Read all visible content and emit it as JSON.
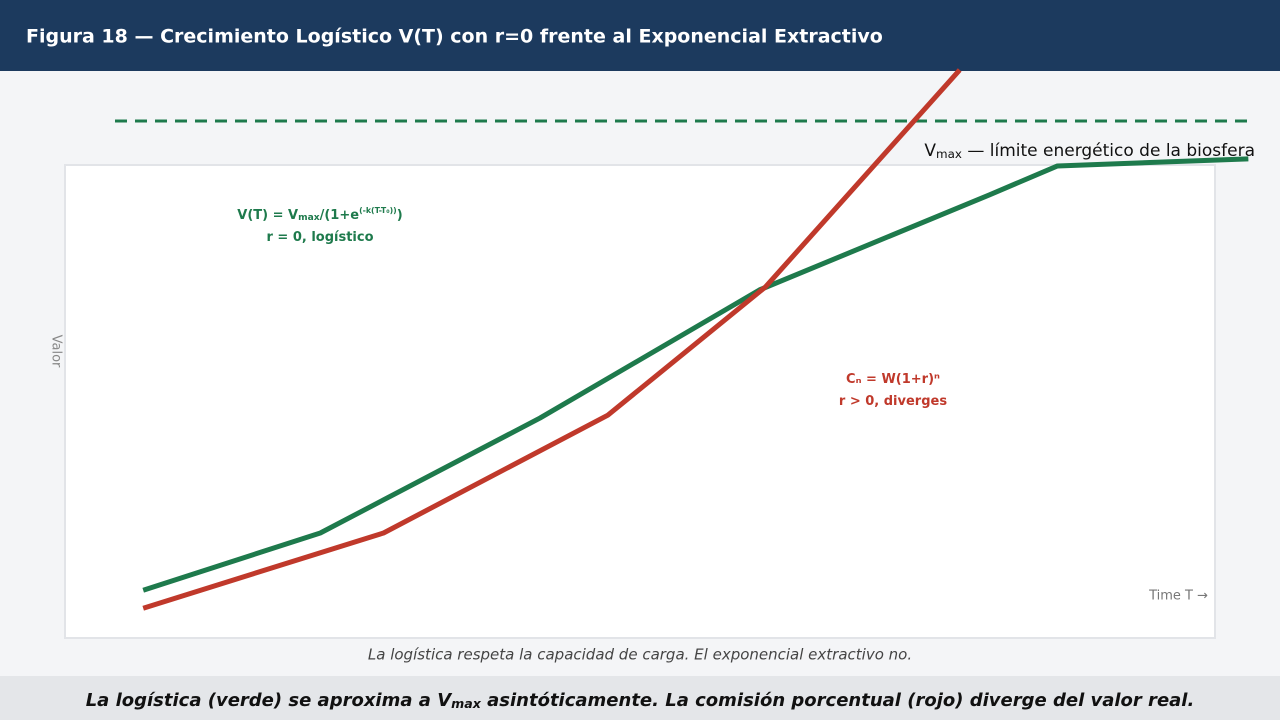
{
  "header": {
    "title": "Figura 18  — Crecimiento Logístico V(T) con r=0 frente al Exponencial Extractivo"
  },
  "chart_data": {
    "type": "line",
    "xlabel": "Time T →",
    "ylabel": "Valor",
    "xlim": [
      0,
      100
    ],
    "ylim": [
      0,
      100
    ],
    "series": [
      {
        "color": "#1e7a4c",
        "x": [
          6.8,
          22.2,
          41.3,
          60.4,
          80.4,
          86.3,
          102.9
        ],
        "values": [
          10.1,
          22.2,
          46.5,
          73.6,
          93.7,
          99.8,
          101.3
        ]
      },
      {
        "color": "#c0392b",
        "x": [
          6.8,
          27.7,
          47.2,
          60.9,
          77.8
        ],
        "values": [
          6.3,
          22.2,
          47.1,
          74.2,
          120.1
        ]
      }
    ],
    "threshold": {
      "value": 109.3,
      "color": "#1e7a4c",
      "label_parts": [
        {
          "text": "V",
          "style": "base"
        },
        {
          "text": "max",
          "style": "sub"
        },
        {
          "text": " — límite energético de la biosfera",
          "style": "base"
        }
      ]
    },
    "annotations": [
      {
        "color": "#1e7a4c",
        "lines": [
          [
            {
              "text": "V(T) = V",
              "style": "base"
            },
            {
              "text": "max",
              "style": "sub"
            },
            {
              "text": "/(1+e",
              "style": "base"
            },
            {
              "text": "(-k(T-T₀))",
              "style": "sup"
            },
            {
              "text": ")",
              "style": "base"
            }
          ],
          [
            {
              "text": "r = 0, logístico",
              "style": "base"
            }
          ]
        ]
      },
      {
        "color": "#c0392b",
        "lines": [
          [
            {
              "text": "Cₙ = W(1+r)ⁿ",
              "style": "base"
            }
          ],
          [
            {
              "text": "r > 0, diverges",
              "style": "base"
            }
          ]
        ]
      }
    ],
    "caption": "La logística respeta la capacidad de carga. El exponencial extractivo no."
  },
  "footer": {
    "parts": [
      {
        "text": "La logística (verde) se aproxima a V",
        "style": "base"
      },
      {
        "text": "max",
        "style": "sub"
      },
      {
        "text": " asintóticamente. La comisión porcentual (rojo) diverge del valor real.",
        "style": "base"
      }
    ]
  }
}
